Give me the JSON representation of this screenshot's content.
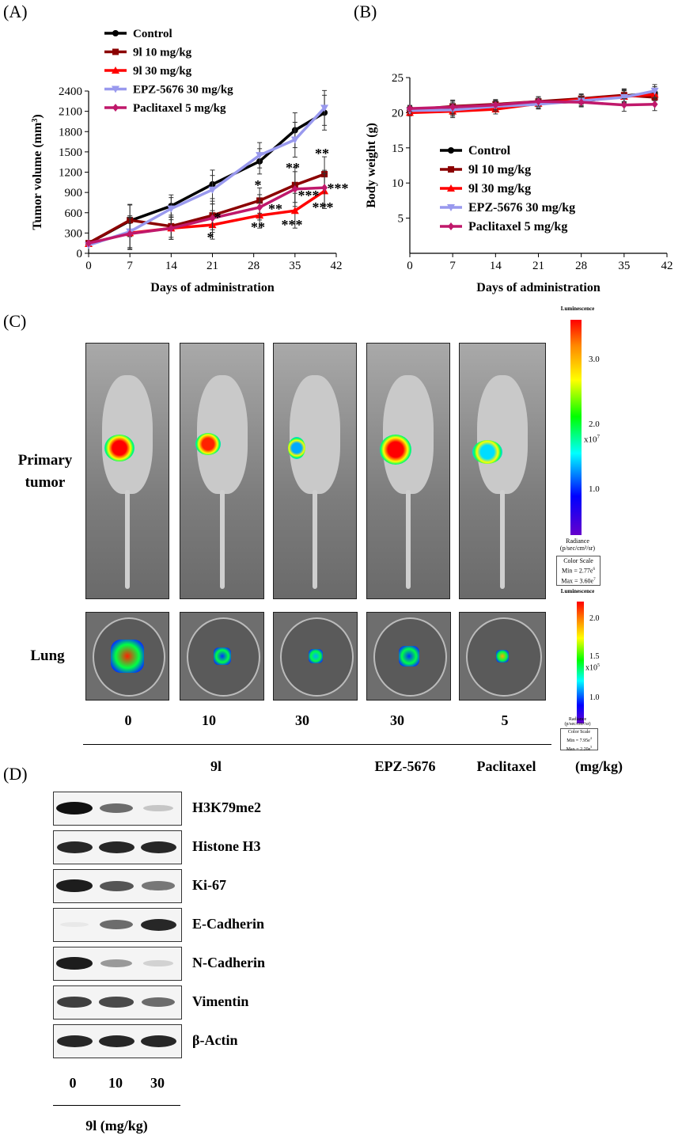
{
  "panels": {
    "a": "(A)",
    "b": "(B)",
    "c": "(C)",
    "d": "(D)"
  },
  "chart_data": [
    {
      "type": "line",
      "panel": "(A)",
      "xlabel": "Days of administration",
      "ylabel": "Tumor volume (mm",
      "ylabel_sup": "3",
      "ylabel_close": ")",
      "x": [
        0,
        7,
        14,
        21,
        29,
        35,
        40
      ],
      "xticks": [
        "0",
        "7",
        "14",
        "21",
        "28",
        "35",
        "42"
      ],
      "xlim": [
        0,
        42
      ],
      "yticks": [
        "0",
        "300",
        "600",
        "900",
        "1200",
        "1500",
        "1800",
        "2100",
        "2400"
      ],
      "ylim": [
        0,
        2400
      ],
      "legend_position": "top-left",
      "series": [
        {
          "name": "Control",
          "color": "#000000",
          "marker": "circle",
          "values": [
            150,
            480,
            700,
            1020,
            1360,
            1820,
            2080
          ]
        },
        {
          "name": "9l 10 mg/kg",
          "color": "#8b0000",
          "marker": "square",
          "values": [
            150,
            490,
            400,
            560,
            780,
            1010,
            1170
          ]
        },
        {
          "name": "9l 30 mg/kg",
          "color": "#ff0000",
          "marker": "triangle",
          "values": [
            140,
            300,
            370,
            420,
            560,
            630,
            920
          ]
        },
        {
          "name": "EPZ-5676 30 mg/kg",
          "color": "#9999ee",
          "marker": "triangle-down",
          "values": [
            120,
            320,
            660,
            940,
            1450,
            1680,
            2150
          ]
        },
        {
          "name": "Paclitaxel 5 mg/kg",
          "color": "#c0186b",
          "marker": "diamond",
          "values": [
            150,
            290,
            370,
            520,
            680,
            950,
            970
          ]
        }
      ],
      "annotations": [
        "**",
        "**",
        "*",
        "*",
        "**",
        "**",
        "***",
        "***",
        "***",
        "***",
        "*"
      ]
    },
    {
      "type": "line",
      "panel": "(B)",
      "xlabel": "Days of administration",
      "ylabel": "Body weight (g)",
      "x": [
        0,
        7,
        14,
        21,
        28,
        35,
        40
      ],
      "xticks": [
        "0",
        "7",
        "14",
        "21",
        "28",
        "35",
        "42"
      ],
      "xlim": [
        0,
        42
      ],
      "yticks": [
        "5",
        "10",
        "15",
        "20",
        "25"
      ],
      "ylim": [
        0,
        25
      ],
      "legend_position": "bottom-left",
      "series": [
        {
          "name": "Control",
          "color": "#000000",
          "marker": "circle",
          "values": [
            20.5,
            20.6,
            21.0,
            21.4,
            21.6,
            22.4,
            22.8
          ]
        },
        {
          "name": "9l 10 mg/kg",
          "color": "#8b0000",
          "marker": "square",
          "values": [
            20.4,
            20.9,
            21.2,
            21.6,
            22.0,
            22.5,
            22.2
          ]
        },
        {
          "name": "9l 30 mg/kg",
          "color": "#ff0000",
          "marker": "triangle",
          "values": [
            20.0,
            20.2,
            20.5,
            21.3,
            21.9,
            22.3,
            22.6
          ]
        },
        {
          "name": "EPZ-5676 30 mg/kg",
          "color": "#9999ee",
          "marker": "triangle-down",
          "values": [
            20.3,
            20.4,
            20.9,
            21.2,
            21.7,
            22.2,
            23.1
          ]
        },
        {
          "name": "Paclitaxel 5 mg/kg",
          "color": "#c0186b",
          "marker": "diamond",
          "values": [
            20.6,
            20.8,
            21.1,
            21.6,
            21.5,
            21.1,
            21.2
          ]
        }
      ]
    }
  ],
  "imaging": {
    "row_labels": {
      "primary": "Primary\ntumor",
      "lung": "Lung"
    },
    "doses": [
      "0",
      "10",
      "30",
      "30",
      "5"
    ],
    "groups": {
      "nine_l": "9l",
      "epz": "EPZ-5676",
      "paclitaxel": "Paclitaxel",
      "unit": "(mg/kg)"
    },
    "scale_primary": {
      "title": "Luminescence",
      "ticks": [
        "3.0",
        "2.0",
        "1.0"
      ],
      "exponent_base": "x10",
      "exponent_power": "7",
      "radiance": "Radiance",
      "radiance_unit": "(p/sec/cm²/sr)",
      "color_scale": "Color Scale",
      "min": "Min = 2.77e",
      "min_power": "6",
      "max": "Max = 3.60e",
      "max_power": "7"
    },
    "scale_lung": {
      "title": "Luminescence",
      "ticks": [
        "2.0",
        "1.5",
        "1.0"
      ],
      "exponent_base": "x10",
      "exponent_power": "5",
      "radiance": "Radiance",
      "radiance_unit": "(p/sec/cm²/sr)",
      "color_scale": "Color Scale",
      "min": "Min = 7.95e",
      "min_power": "4",
      "max": "Max = 2.20e",
      "max_power": "5"
    }
  },
  "western": {
    "labels": [
      "H3K79me2",
      "Histone H3",
      "Ki-67",
      "E-Cadherin",
      "N-Cadherin",
      "Vimentin",
      "β-Actin"
    ],
    "doses": [
      "0",
      "10",
      "30"
    ],
    "unit": "9l (mg/kg)",
    "intensity": [
      [
        1.0,
        0.6,
        0.2
      ],
      [
        0.9,
        0.9,
        0.9
      ],
      [
        0.95,
        0.7,
        0.55
      ],
      [
        0.05,
        0.6,
        0.9
      ],
      [
        0.95,
        0.4,
        0.15
      ],
      [
        0.8,
        0.75,
        0.6
      ],
      [
        0.9,
        0.9,
        0.9
      ]
    ]
  }
}
